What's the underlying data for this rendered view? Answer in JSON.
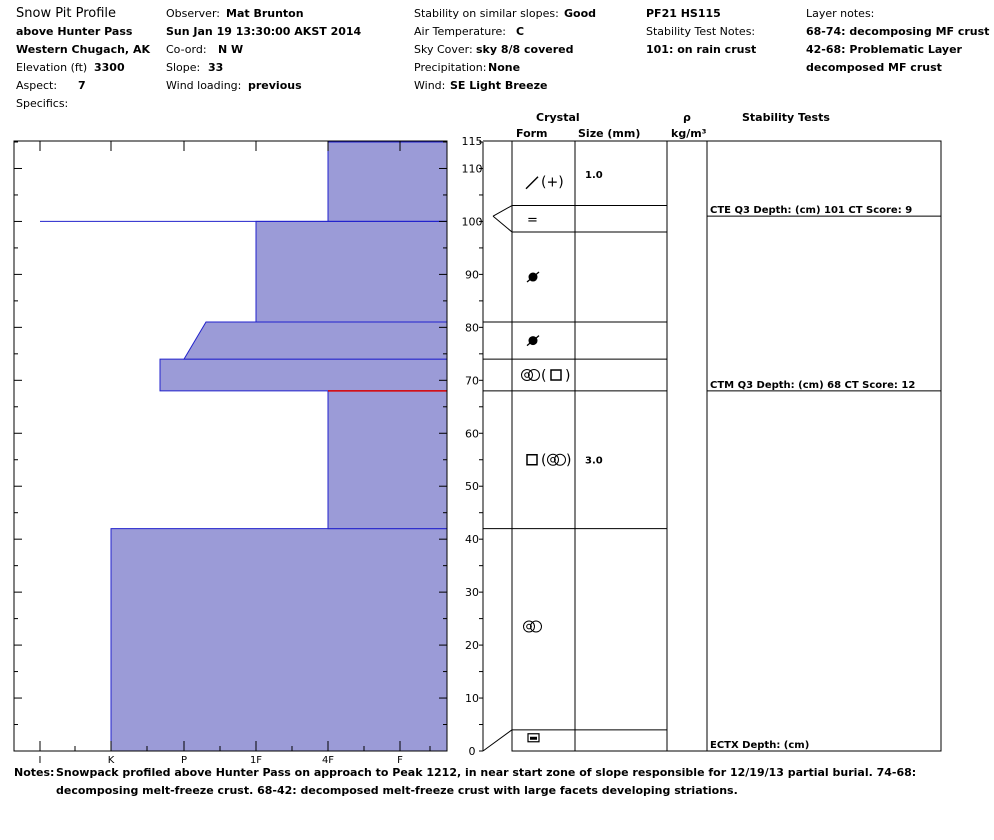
{
  "header": {
    "title": "Snow Pit Profile",
    "location": "above Hunter Pass",
    "range": "Western Chugach, AK",
    "elevation_label": "Elevation (ft)",
    "elevation_value": "3300",
    "aspect_label": "Aspect:",
    "aspect_value": "7",
    "specifics_label": "Specifics:",
    "observer_label": "Observer:",
    "observer_value": "Mat Brunton",
    "datetime": "Sun Jan 19 13:30:00 AKST 2014",
    "coord_label": "Co-ord:",
    "coord_value": "N  W",
    "slope_label": "Slope:",
    "slope_value": "33",
    "wind_loading_label": "Wind loading:",
    "wind_loading_value": "previous",
    "stability_label": "Stability on similar slopes:",
    "stability_value": "Good",
    "air_temp_label": "Air Temperature:",
    "air_temp_value": "C",
    "sky_label": "Sky Cover:",
    "sky_value": "sky 8/8 covered",
    "precip_label": "Precipitation:",
    "precip_value": "None",
    "wind_label": "Wind:",
    "wind_value": "SE Light Breeze",
    "pit_id": "PF21 HS115",
    "stab_notes_label": "Stability Test Notes:",
    "stab_notes_value": "101: on rain crust",
    "layer_notes_label": "Layer notes:",
    "layer_notes": [
      "68-74: decomposing MF crust",
      "42-68: Problematic Layer",
      "decomposed MF crust"
    ]
  },
  "columns": {
    "crystal": "Crystal",
    "form": "Form",
    "size": "Size (mm)",
    "rho": "ρ",
    "density_unit": "kg/m³",
    "stability_tests": "Stability Tests"
  },
  "notes": {
    "label": "Notes:",
    "text": "Snowpack profiled above Hunter Pass on approach to Peak 1212, in near start zone of slope responsible for 12/19/13 partial burial.  74-68: decomposing melt-freeze crust.  68-42: decomposed melt-freeze crust with large facets developing striations."
  },
  "colors": {
    "hardness_fill": "#9b9bd7",
    "hardness_stroke": "#2222cc",
    "problem_layer": "#dd0000"
  },
  "chart_data": {
    "type": "area",
    "ylabel": "",
    "ylim": [
      0,
      115
    ],
    "y_ticks": [
      0,
      10,
      20,
      30,
      40,
      50,
      60,
      70,
      80,
      90,
      100,
      110,
      115
    ],
    "x_ticks": [
      "I",
      "K",
      "P",
      "1F",
      "4F",
      "F"
    ],
    "hardness_layers": [
      {
        "bottom": 0,
        "top": 42,
        "hardness": "K",
        "hardness_bottom": "K"
      },
      {
        "bottom": 42,
        "top": 68,
        "hardness": "4F",
        "hardness_bottom": "4F"
      },
      {
        "bottom": 68,
        "top": 74,
        "hardness": "P-",
        "hardness_bottom": "P-"
      },
      {
        "bottom": 74,
        "top": 81,
        "hardness": "P",
        "hardness_bottom": "P+"
      },
      {
        "bottom": 81,
        "top": 100,
        "hardness": "1F",
        "hardness_bottom": "1F"
      },
      {
        "bottom": 100,
        "top": 115,
        "hardness": "4F",
        "hardness_bottom": "4F"
      }
    ],
    "thin_layers": [
      {
        "depth": 100,
        "hardness": "I"
      }
    ],
    "problem_layer_depth": 68,
    "crystal_layers": [
      {
        "bottom": 0,
        "top": 4,
        "form": "melt-freeze crust",
        "size": ""
      },
      {
        "bottom": 4,
        "top": 42,
        "form": "melt forms",
        "size": ""
      },
      {
        "bottom": 42,
        "top": 68,
        "form": "faceted (melt forms)",
        "size": "3.0"
      },
      {
        "bottom": 68,
        "top": 74,
        "form": "melt forms (faceted)",
        "size": ""
      },
      {
        "bottom": 74,
        "top": 81,
        "form": "rounded",
        "size": ""
      },
      {
        "bottom": 81,
        "top": 98,
        "form": "rounded",
        "size": ""
      },
      {
        "bottom": 98,
        "top": 103,
        "form": "ice layer",
        "size": ""
      },
      {
        "bottom": 103,
        "top": 115,
        "form": "decomposing (precipitation)",
        "size": "1.0"
      }
    ],
    "stability_tests": [
      {
        "depth": 101,
        "text": "CTE Q3 Depth: (cm) 101 CT Score: 9"
      },
      {
        "depth": 68,
        "text": "CTM Q3 Depth: (cm) 68 CT Score: 12"
      },
      {
        "depth": 0,
        "text": "ECTX   Depth: (cm)"
      }
    ]
  }
}
